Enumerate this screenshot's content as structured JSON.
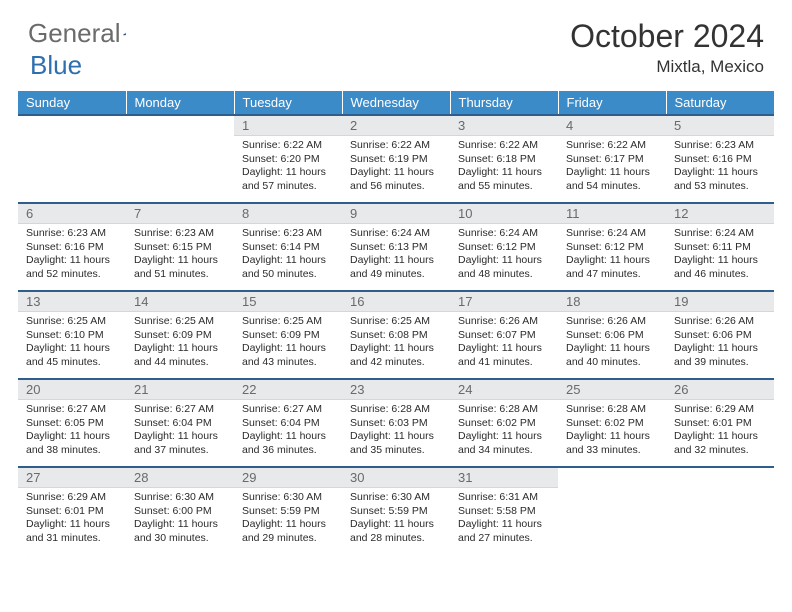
{
  "logo": {
    "word1": "General",
    "word2": "Blue"
  },
  "title": "October 2024",
  "location": "Mixtla, Mexico",
  "colors": {
    "header_bg": "#3b8bc9",
    "header_text": "#ffffff",
    "row_border": "#2f5d8c",
    "daynum_bg": "#e7e9eb",
    "daynum_text": "#6a6a6a",
    "body_text": "#2b2b2b",
    "logo_gray": "#6b6b6b",
    "logo_blue": "#2f6fb0"
  },
  "weekdays": [
    "Sunday",
    "Monday",
    "Tuesday",
    "Wednesday",
    "Thursday",
    "Friday",
    "Saturday"
  ],
  "weeks": [
    [
      null,
      null,
      {
        "n": "1",
        "sr": "Sunrise: 6:22 AM",
        "ss": "Sunset: 6:20 PM",
        "dl": "Daylight: 11 hours and 57 minutes."
      },
      {
        "n": "2",
        "sr": "Sunrise: 6:22 AM",
        "ss": "Sunset: 6:19 PM",
        "dl": "Daylight: 11 hours and 56 minutes."
      },
      {
        "n": "3",
        "sr": "Sunrise: 6:22 AM",
        "ss": "Sunset: 6:18 PM",
        "dl": "Daylight: 11 hours and 55 minutes."
      },
      {
        "n": "4",
        "sr": "Sunrise: 6:22 AM",
        "ss": "Sunset: 6:17 PM",
        "dl": "Daylight: 11 hours and 54 minutes."
      },
      {
        "n": "5",
        "sr": "Sunrise: 6:23 AM",
        "ss": "Sunset: 6:16 PM",
        "dl": "Daylight: 11 hours and 53 minutes."
      }
    ],
    [
      {
        "n": "6",
        "sr": "Sunrise: 6:23 AM",
        "ss": "Sunset: 6:16 PM",
        "dl": "Daylight: 11 hours and 52 minutes."
      },
      {
        "n": "7",
        "sr": "Sunrise: 6:23 AM",
        "ss": "Sunset: 6:15 PM",
        "dl": "Daylight: 11 hours and 51 minutes."
      },
      {
        "n": "8",
        "sr": "Sunrise: 6:23 AM",
        "ss": "Sunset: 6:14 PM",
        "dl": "Daylight: 11 hours and 50 minutes."
      },
      {
        "n": "9",
        "sr": "Sunrise: 6:24 AM",
        "ss": "Sunset: 6:13 PM",
        "dl": "Daylight: 11 hours and 49 minutes."
      },
      {
        "n": "10",
        "sr": "Sunrise: 6:24 AM",
        "ss": "Sunset: 6:12 PM",
        "dl": "Daylight: 11 hours and 48 minutes."
      },
      {
        "n": "11",
        "sr": "Sunrise: 6:24 AM",
        "ss": "Sunset: 6:12 PM",
        "dl": "Daylight: 11 hours and 47 minutes."
      },
      {
        "n": "12",
        "sr": "Sunrise: 6:24 AM",
        "ss": "Sunset: 6:11 PM",
        "dl": "Daylight: 11 hours and 46 minutes."
      }
    ],
    [
      {
        "n": "13",
        "sr": "Sunrise: 6:25 AM",
        "ss": "Sunset: 6:10 PM",
        "dl": "Daylight: 11 hours and 45 minutes."
      },
      {
        "n": "14",
        "sr": "Sunrise: 6:25 AM",
        "ss": "Sunset: 6:09 PM",
        "dl": "Daylight: 11 hours and 44 minutes."
      },
      {
        "n": "15",
        "sr": "Sunrise: 6:25 AM",
        "ss": "Sunset: 6:09 PM",
        "dl": "Daylight: 11 hours and 43 minutes."
      },
      {
        "n": "16",
        "sr": "Sunrise: 6:25 AM",
        "ss": "Sunset: 6:08 PM",
        "dl": "Daylight: 11 hours and 42 minutes."
      },
      {
        "n": "17",
        "sr": "Sunrise: 6:26 AM",
        "ss": "Sunset: 6:07 PM",
        "dl": "Daylight: 11 hours and 41 minutes."
      },
      {
        "n": "18",
        "sr": "Sunrise: 6:26 AM",
        "ss": "Sunset: 6:06 PM",
        "dl": "Daylight: 11 hours and 40 minutes."
      },
      {
        "n": "19",
        "sr": "Sunrise: 6:26 AM",
        "ss": "Sunset: 6:06 PM",
        "dl": "Daylight: 11 hours and 39 minutes."
      }
    ],
    [
      {
        "n": "20",
        "sr": "Sunrise: 6:27 AM",
        "ss": "Sunset: 6:05 PM",
        "dl": "Daylight: 11 hours and 38 minutes."
      },
      {
        "n": "21",
        "sr": "Sunrise: 6:27 AM",
        "ss": "Sunset: 6:04 PM",
        "dl": "Daylight: 11 hours and 37 minutes."
      },
      {
        "n": "22",
        "sr": "Sunrise: 6:27 AM",
        "ss": "Sunset: 6:04 PM",
        "dl": "Daylight: 11 hours and 36 minutes."
      },
      {
        "n": "23",
        "sr": "Sunrise: 6:28 AM",
        "ss": "Sunset: 6:03 PM",
        "dl": "Daylight: 11 hours and 35 minutes."
      },
      {
        "n": "24",
        "sr": "Sunrise: 6:28 AM",
        "ss": "Sunset: 6:02 PM",
        "dl": "Daylight: 11 hours and 34 minutes."
      },
      {
        "n": "25",
        "sr": "Sunrise: 6:28 AM",
        "ss": "Sunset: 6:02 PM",
        "dl": "Daylight: 11 hours and 33 minutes."
      },
      {
        "n": "26",
        "sr": "Sunrise: 6:29 AM",
        "ss": "Sunset: 6:01 PM",
        "dl": "Daylight: 11 hours and 32 minutes."
      }
    ],
    [
      {
        "n": "27",
        "sr": "Sunrise: 6:29 AM",
        "ss": "Sunset: 6:01 PM",
        "dl": "Daylight: 11 hours and 31 minutes."
      },
      {
        "n": "28",
        "sr": "Sunrise: 6:30 AM",
        "ss": "Sunset: 6:00 PM",
        "dl": "Daylight: 11 hours and 30 minutes."
      },
      {
        "n": "29",
        "sr": "Sunrise: 6:30 AM",
        "ss": "Sunset: 5:59 PM",
        "dl": "Daylight: 11 hours and 29 minutes."
      },
      {
        "n": "30",
        "sr": "Sunrise: 6:30 AM",
        "ss": "Sunset: 5:59 PM",
        "dl": "Daylight: 11 hours and 28 minutes."
      },
      {
        "n": "31",
        "sr": "Sunrise: 6:31 AM",
        "ss": "Sunset: 5:58 PM",
        "dl": "Daylight: 11 hours and 27 minutes."
      },
      null,
      null
    ]
  ]
}
